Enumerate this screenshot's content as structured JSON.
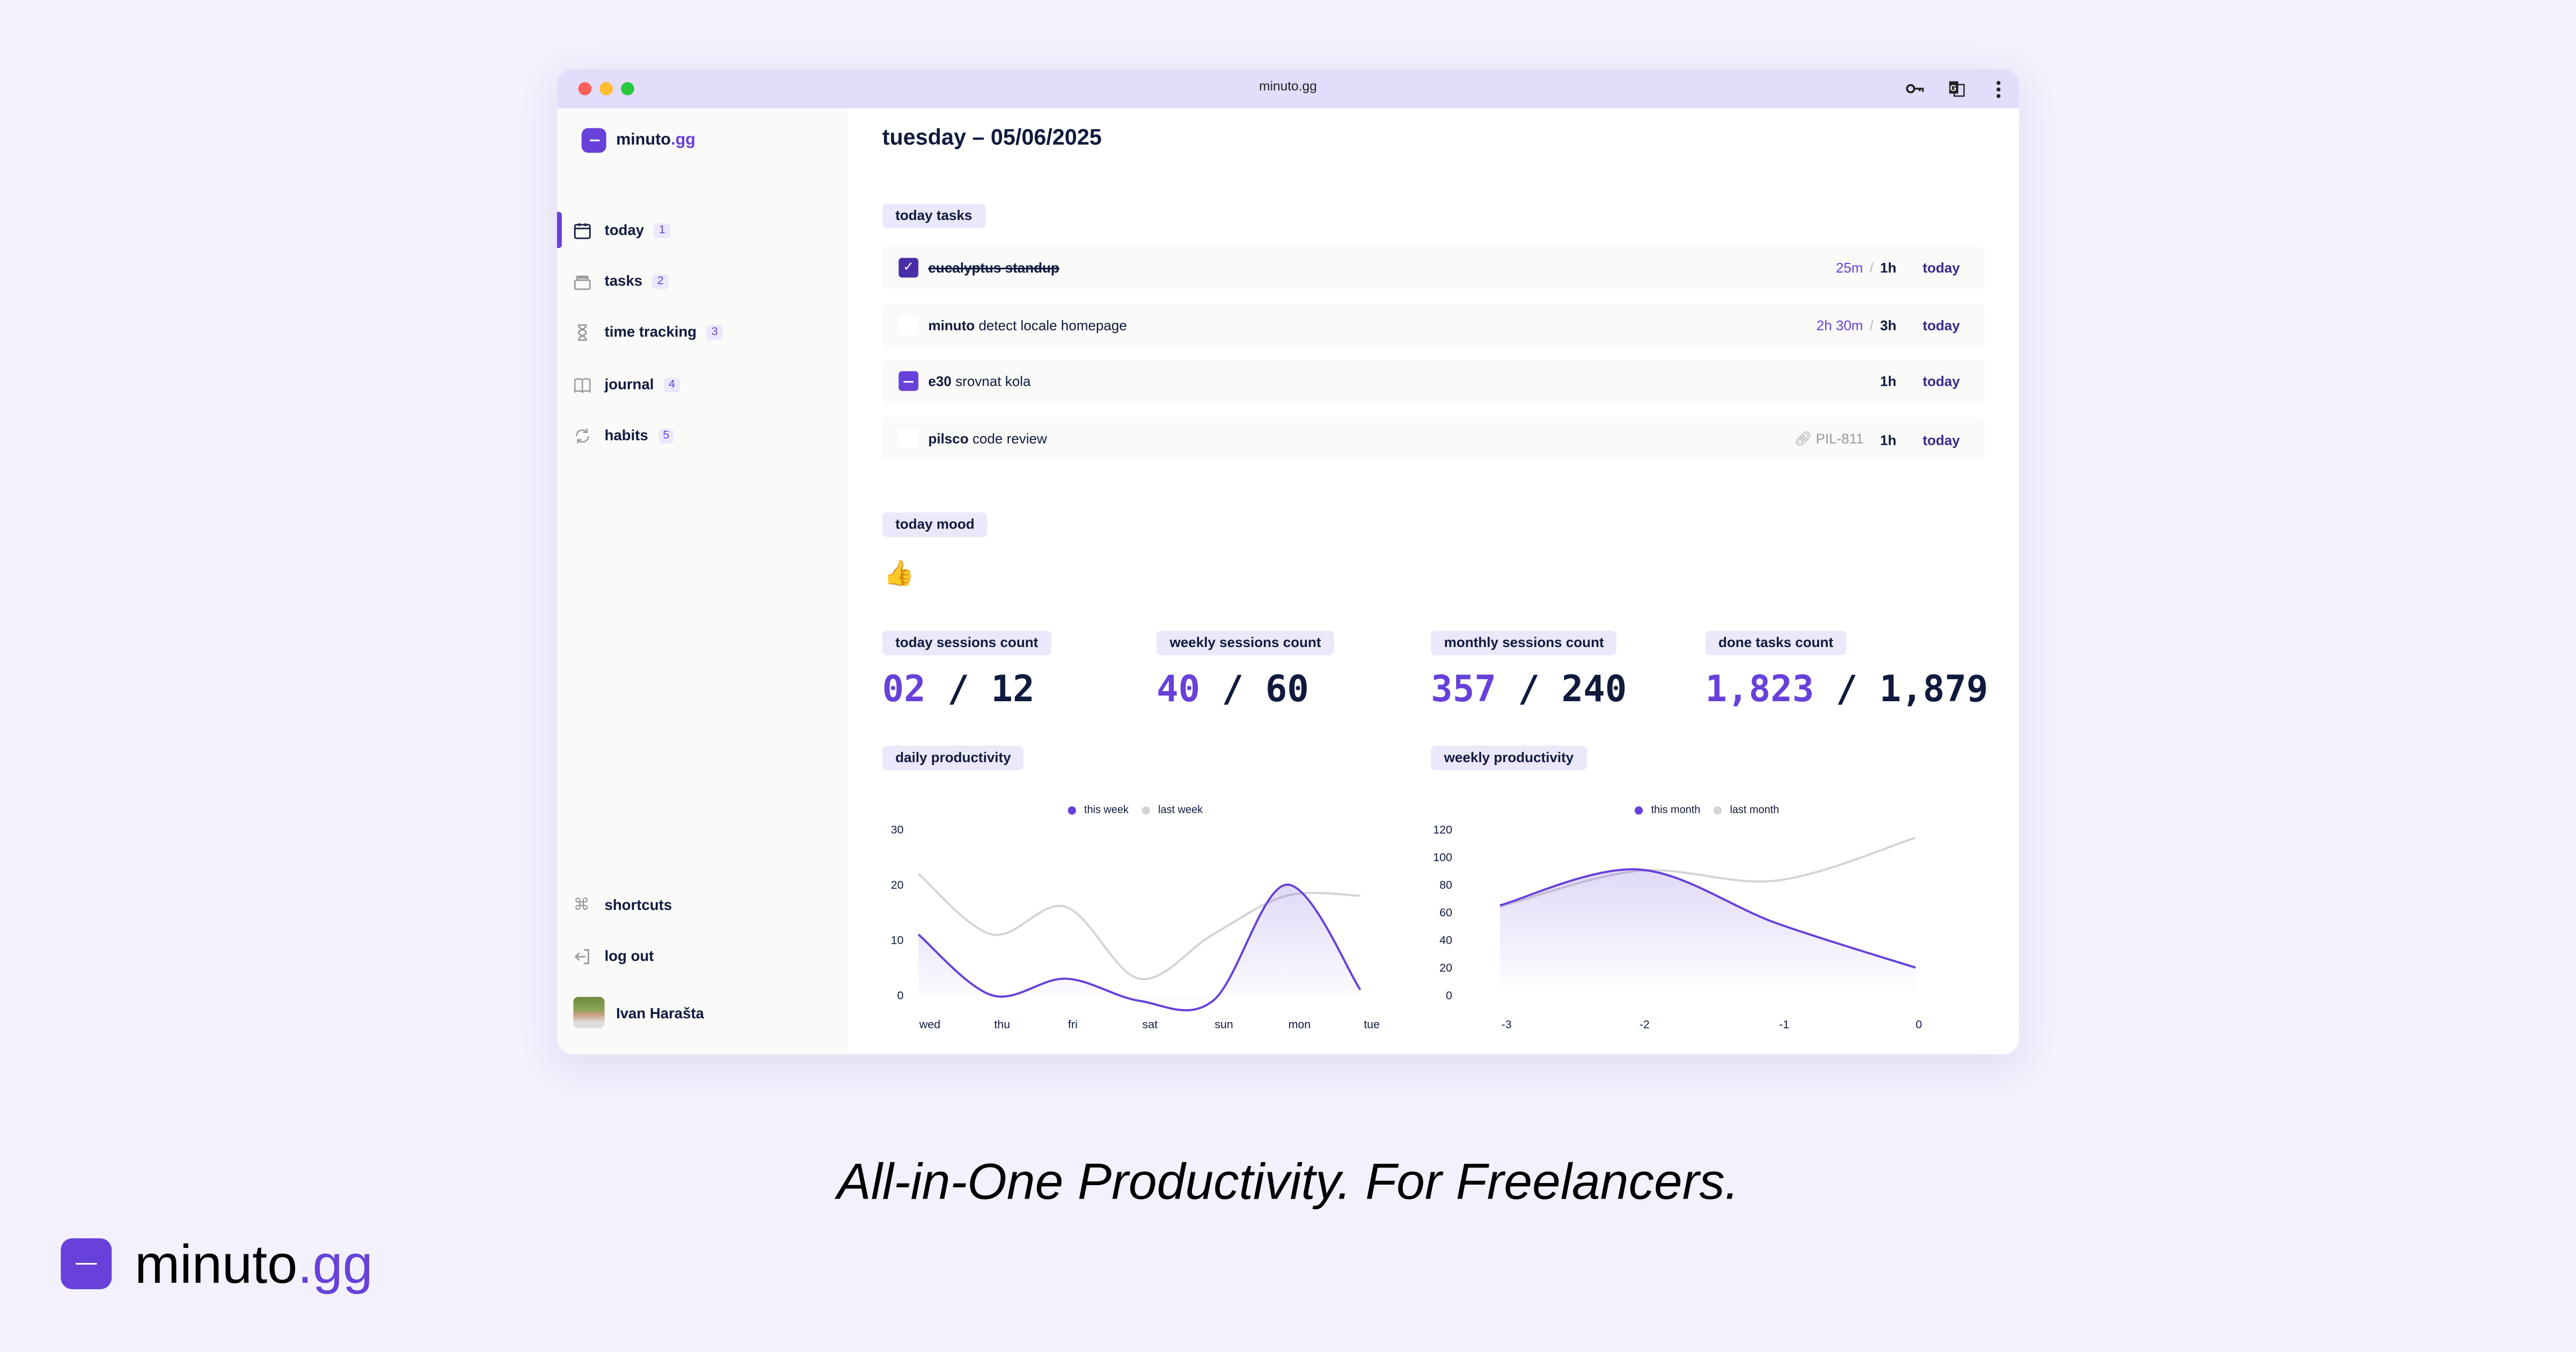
{
  "browser": {
    "url": "minuto.gg",
    "icons": [
      "key-icon",
      "translate-icon",
      "more-vertical-icon"
    ]
  },
  "brand": {
    "name": "minuto",
    "tld": ".gg",
    "color": "#6741d9"
  },
  "sidebar": {
    "items": [
      {
        "label": "today",
        "count": "1",
        "icon": "calendar-icon",
        "active": true
      },
      {
        "label": "tasks",
        "count": "2",
        "icon": "archive-icon"
      },
      {
        "label": "time tracking",
        "count": "3",
        "icon": "hourglass-icon"
      },
      {
        "label": "journal",
        "count": "4",
        "icon": "book-icon"
      },
      {
        "label": "habits",
        "count": "5",
        "icon": "refresh-icon"
      }
    ],
    "shortcuts": "shortcuts",
    "logout": "log out",
    "user": "Ivan Harašta"
  },
  "main": {
    "title": "tuesday – 05/06/2025",
    "tasks_label": "today tasks",
    "tasks": [
      {
        "project": "",
        "name": "eucalyptus standup",
        "state": "done",
        "spent": "25m",
        "estimate": "1h",
        "ref": "",
        "day": "today"
      },
      {
        "project": "minuto",
        "name": "detect locale homepage",
        "state": "open",
        "spent": "2h 30m",
        "estimate": "3h",
        "ref": "",
        "day": "today"
      },
      {
        "project": "e30",
        "name": "srovnat kola",
        "state": "in-progress",
        "spent": "",
        "estimate": "1h",
        "ref": "",
        "day": "today"
      },
      {
        "project": "pilsco",
        "name": "code review",
        "state": "open",
        "spent": "",
        "estimate": "1h",
        "ref": "PIL-811",
        "day": "today"
      }
    ],
    "mood_label": "today mood",
    "mood": "👍",
    "stats": [
      {
        "label": "today sessions count",
        "value": "02",
        "total": "12"
      },
      {
        "label": "weekly sessions count",
        "value": "40",
        "total": "60"
      },
      {
        "label": "monthly sessions count",
        "value": "357",
        "total": "240"
      },
      {
        "label": "done tasks count",
        "value": "1,823",
        "total": "1,879"
      }
    ],
    "daily_label": "daily productivity",
    "weekly_label": "weekly productivity"
  },
  "chart_data": [
    {
      "type": "area",
      "categories": [
        "wed",
        "thu",
        "fri",
        "sat",
        "sun",
        "mon",
        "tue"
      ],
      "yticks": [
        "0",
        "10",
        "20",
        "30"
      ],
      "ylim": [
        0,
        30
      ],
      "grid": false,
      "legend": "top-center",
      "series": [
        {
          "name": "this week",
          "values": [
            11,
            0,
            3,
            -1,
            -1,
            20,
            1
          ],
          "color": "#6741d9",
          "fill": true
        },
        {
          "name": "last week",
          "values": [
            22,
            11,
            16,
            3,
            11,
            18,
            18
          ],
          "color": "#d4d4d8",
          "fill": false
        }
      ]
    },
    {
      "type": "area",
      "categories": [
        "-3",
        "-2",
        "-1",
        "0"
      ],
      "yticks": [
        "0",
        "20",
        "40",
        "60",
        "80",
        "100",
        "120"
      ],
      "ylim": [
        0,
        120
      ],
      "grid": false,
      "legend": "top-center",
      "series": [
        {
          "name": "this month",
          "values": [
            65,
            91,
            52,
            20
          ],
          "color": "#6741d9",
          "fill": true
        },
        {
          "name": "last month",
          "values": [
            64,
            90,
            83,
            114
          ],
          "color": "#d4d4d8",
          "fill": false
        }
      ]
    }
  ],
  "footer": {
    "tagline": "All-in-One Productivity. For Freelancers."
  }
}
